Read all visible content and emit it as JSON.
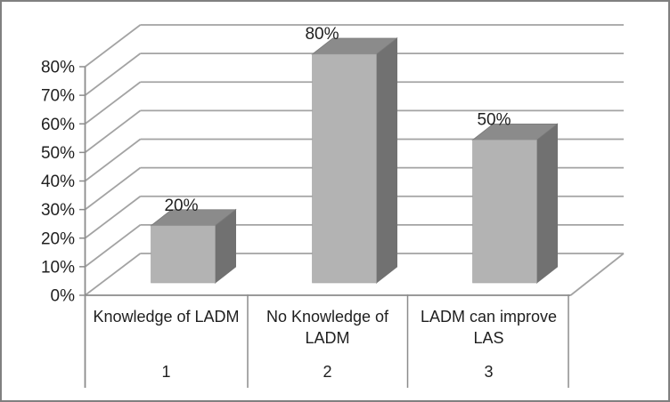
{
  "chart_data": {
    "type": "bar",
    "projection": "3d-column",
    "title": "",
    "categories": [
      {
        "label": "Knowledge of LADM",
        "index": "1"
      },
      {
        "label": "No Knowledge of LADM",
        "index": "2"
      },
      {
        "label": "LADM can improve LAS",
        "index": "3"
      }
    ],
    "values": [
      20,
      80,
      50
    ],
    "data_labels": [
      "20%",
      "80%",
      "50%"
    ],
    "y_axis": {
      "min": 0,
      "max": 80,
      "step": 10,
      "tick_labels": [
        "0%",
        "10%",
        "20%",
        "30%",
        "40%",
        "50%",
        "60%",
        "70%",
        "80%"
      ]
    },
    "xlabel": "",
    "ylabel": "",
    "grid": true,
    "legend": false
  },
  "colors": {
    "background": "#ffffff",
    "border": "#808080",
    "bar_front": "#b3b3b3",
    "bar_top": "#8b8b8b",
    "bar_side": "#717171",
    "gridline": "#a3a3a3",
    "axis": "#8c8c8c",
    "text": "#1f1f1f"
  }
}
